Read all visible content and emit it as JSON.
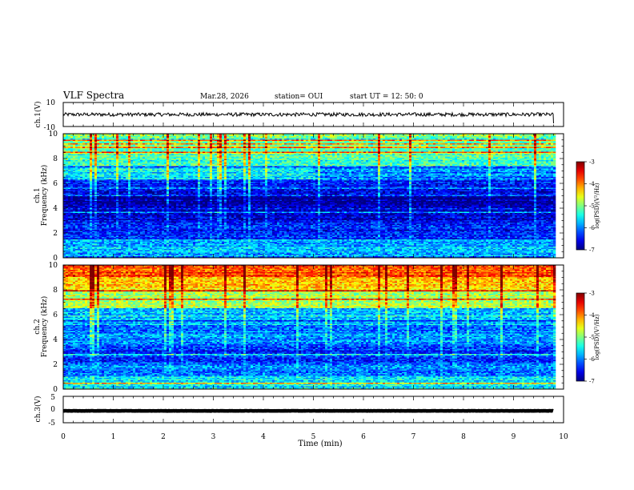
{
  "header": {
    "title": "VLF Spectra",
    "date": "Mar.28, 2026",
    "station": "station= OUI",
    "start_time": "start  UT  =   12: 50: 0"
  },
  "colors": {
    "spec_low": "#00007f",
    "spec_mid": "#00ff80",
    "spec_high": "#ff0000",
    "line": "#000000"
  },
  "chart_data": [
    {
      "type": "line",
      "panel": "ch1-waveform",
      "ylabel": "ch.1(V)",
      "ylim": [
        -10,
        10
      ],
      "yticks": [
        10,
        -10
      ],
      "xlim": [
        0,
        10
      ],
      "trace_level": 0,
      "trace_amplitude": 1.5,
      "trace_end": 9.8
    },
    {
      "type": "heatmap",
      "panel": "ch1-spectrogram",
      "ylabel_top": "ch.1",
      "ylabel": "Frequency (kHz)",
      "ylim": [
        0,
        10
      ],
      "yticks": [
        0,
        2,
        4,
        6,
        8,
        10
      ],
      "xlim": [
        0,
        10
      ],
      "data_end": 9.8,
      "colorbar": {
        "label": "log(PSD)(V²/Hz)",
        "range": [
          -7,
          -3
        ],
        "ticks": [
          -3,
          -4,
          -5,
          -6,
          -7
        ]
      },
      "bands": [
        {
          "fmin": 0.0,
          "fmax": 0.3,
          "log_psd": -6.0
        },
        {
          "fmin": 0.3,
          "fmax": 1.5,
          "log_psd": -5.8
        },
        {
          "fmin": 1.5,
          "fmax": 3.0,
          "log_psd": -6.4
        },
        {
          "fmin": 3.0,
          "fmax": 4.2,
          "log_psd": -6.6
        },
        {
          "fmin": 4.2,
          "fmax": 5.0,
          "log_psd": -6.9
        },
        {
          "fmin": 5.0,
          "fmax": 6.2,
          "log_psd": -6.5
        },
        {
          "fmin": 6.2,
          "fmax": 7.4,
          "log_psd": -6.0
        },
        {
          "fmin": 7.4,
          "fmax": 8.6,
          "log_psd": -5.2
        },
        {
          "fmin": 8.6,
          "fmax": 10.0,
          "log_psd": -5.0
        }
      ]
    },
    {
      "type": "heatmap",
      "panel": "ch2-spectrogram",
      "ylabel_top": "ch.2",
      "ylabel": "Frequency (kHz)",
      "ylim": [
        0,
        10
      ],
      "yticks": [
        0,
        2,
        4,
        6,
        8,
        10
      ],
      "xlim": [
        0,
        10
      ],
      "data_end": 9.8,
      "colorbar": {
        "label": "log(PSD)(V²/Hz)",
        "range": [
          -7,
          -3
        ],
        "ticks": [
          -3,
          -4,
          -5,
          -6,
          -7
        ]
      },
      "bands": [
        {
          "fmin": 0.0,
          "fmax": 1.0,
          "log_psd": -5.6
        },
        {
          "fmin": 1.0,
          "fmax": 2.0,
          "log_psd": -6.0
        },
        {
          "fmin": 2.0,
          "fmax": 3.5,
          "log_psd": -6.3
        },
        {
          "fmin": 3.5,
          "fmax": 5.0,
          "log_psd": -6.0
        },
        {
          "fmin": 5.0,
          "fmax": 6.5,
          "log_psd": -5.8
        },
        {
          "fmin": 6.5,
          "fmax": 8.0,
          "log_psd": -4.8
        },
        {
          "fmin": 8.0,
          "fmax": 9.0,
          "log_psd": -4.3
        },
        {
          "fmin": 9.0,
          "fmax": 10.0,
          "log_psd": -3.8
        }
      ]
    },
    {
      "type": "line",
      "panel": "ch3-waveform",
      "ylabel": "ch.3(V)",
      "ylim": [
        -5,
        5
      ],
      "yticks": [
        5,
        0,
        -5
      ],
      "xlim": [
        0,
        10
      ],
      "trace_level": -0.5,
      "trace_amplitude": 0.2,
      "trace_end": 9.8
    }
  ],
  "xaxis": {
    "label": "Time (min)",
    "ticks": [
      "0",
      "1",
      "2",
      "3",
      "4",
      "5",
      "6",
      "7",
      "8",
      "9",
      "10"
    ]
  }
}
